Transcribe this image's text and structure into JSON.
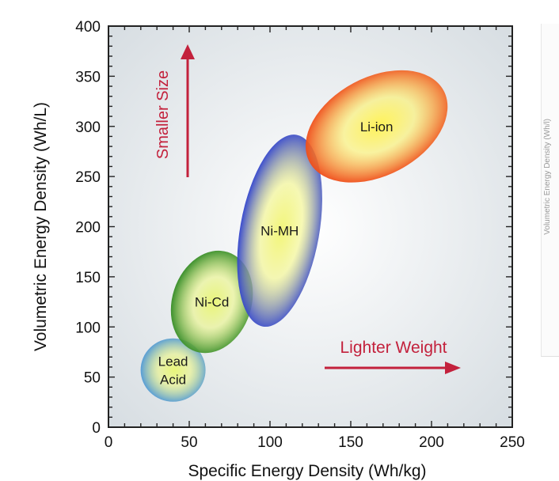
{
  "chart_data": {
    "type": "scatter",
    "title": "",
    "xlabel": "Specific Energy Density (Wh/kg)",
    "ylabel": "Volumetric Energy Density (Wh/L)",
    "xlim": [
      0,
      250
    ],
    "ylim": [
      0,
      400
    ],
    "x_ticks": [
      0,
      50,
      100,
      150,
      200,
      250
    ],
    "y_ticks": [
      0,
      50,
      100,
      150,
      200,
      250,
      300,
      350,
      400
    ],
    "grid": false,
    "regions": [
      {
        "name": "Lead Acid",
        "lines": [
          "Lead",
          "Acid"
        ],
        "x_center": 40,
        "y_center": 57,
        "x_range": [
          20,
          61
        ],
        "y_range": [
          25,
          90
        ],
        "color": "#3f8fe0",
        "highlight": "#e9f57a"
      },
      {
        "name": "Ni-Cd",
        "lines": [
          "Ni-Cd"
        ],
        "x_center": 64,
        "y_center": 125,
        "x_range": [
          38,
          90
        ],
        "y_range": [
          75,
          180
        ],
        "color": "#1e7f1a",
        "highlight": "#e9f57a"
      },
      {
        "name": "Ni-MH",
        "lines": [
          "Ni-MH"
        ],
        "x_center": 106,
        "y_center": 196,
        "x_range": [
          80,
          132
        ],
        "y_range": [
          100,
          290
        ],
        "color": "#1b2fd6",
        "highlight": "#f2f57a"
      },
      {
        "name": "Li-ion",
        "lines": [
          "Li-ion"
        ],
        "x_center": 166,
        "y_center": 300,
        "x_range": [
          123,
          211
        ],
        "y_range": [
          233,
          375
        ],
        "color": "#ee3a12",
        "highlight": "#fff25a"
      }
    ],
    "annotations": [
      {
        "text": "Smaller Size",
        "direction": "up",
        "color": "#c3213c"
      },
      {
        "text": "Lighter Weight",
        "direction": "right",
        "color": "#c3213c"
      }
    ]
  },
  "colors": {
    "axis": "#222222",
    "plot_bg_center": "#ffffff",
    "plot_bg_edge": "#d4dbe0",
    "arrow": "#c3213c",
    "side_text": "#9a9a9a"
  },
  "side_panel": {
    "text": "Volumetric Energy Density (Wh/l)"
  }
}
